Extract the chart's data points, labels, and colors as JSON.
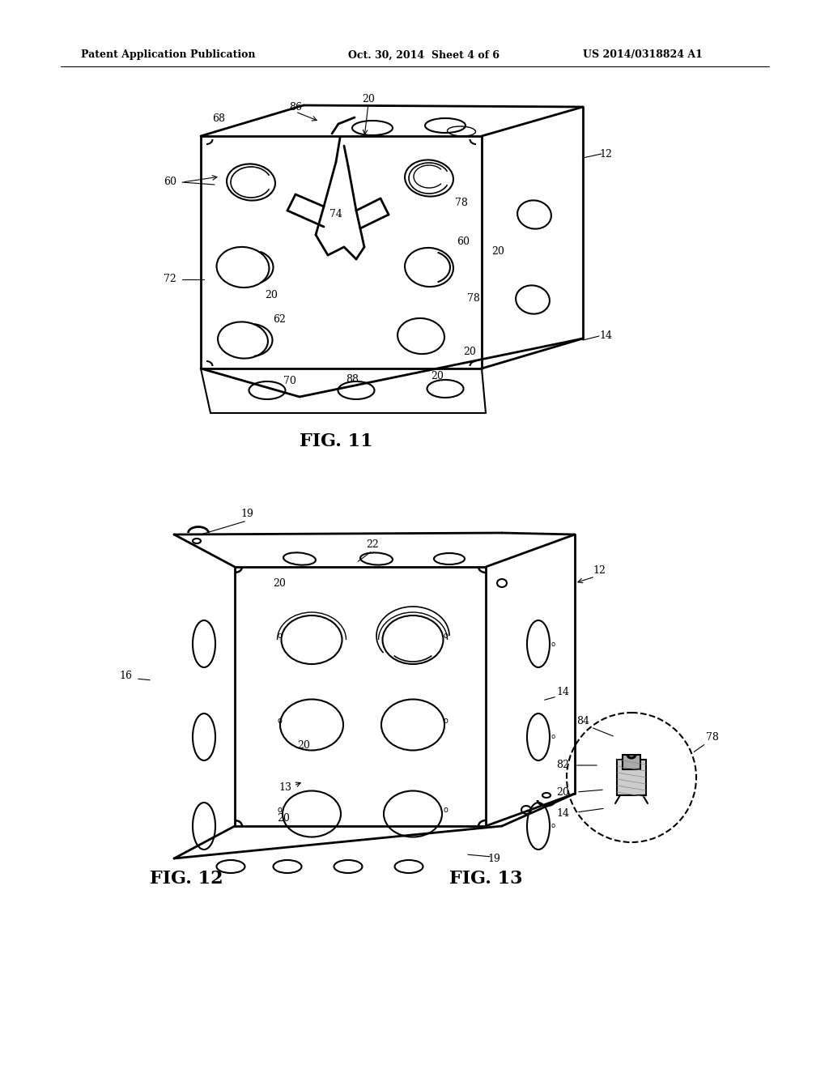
{
  "background_color": "#ffffff",
  "header_text": "Patent Application Publication",
  "header_date": "Oct. 30, 2014  Sheet 4 of 6",
  "header_patent": "US 2014/0318824 A1",
  "fig11_label": "FIG. 11",
  "fig12_label": "FIG. 12",
  "fig13_label": "FIG. 13",
  "text_color": "#000000",
  "line_color": "#000000",
  "fig11_labels": [
    "68",
    "86",
    "20",
    "12",
    "60",
    "74",
    "78",
    "60",
    "20",
    "72",
    "20",
    "62",
    "78",
    "20",
    "70",
    "88",
    "20",
    "14"
  ],
  "fig12_labels": [
    "19",
    "12",
    "22",
    "20",
    "14",
    "16",
    "20",
    "13",
    "20",
    "19"
  ],
  "fig13_labels": [
    "84",
    "78",
    "82",
    "20",
    "14"
  ]
}
